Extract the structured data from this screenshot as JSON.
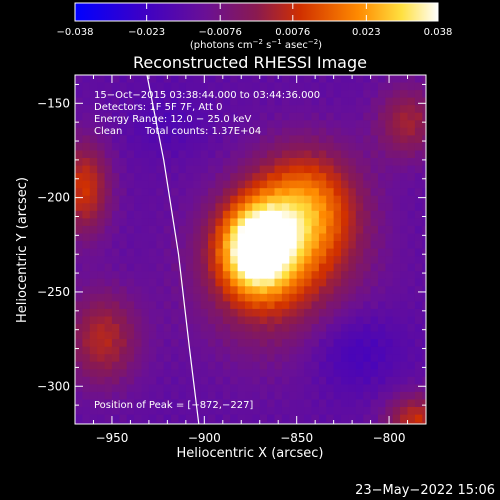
{
  "chart_data": {
    "type": "heatmap",
    "title": "Reconstructed RHESSI Image",
    "xlabel": "Heliocentric X (arcsec)",
    "ylabel": "Heliocentric Y (arcsec)",
    "xlim": [
      -970,
      -780
    ],
    "ylim": [
      -320,
      -135
    ],
    "x_ticks": [
      -950,
      -900,
      -850,
      -800
    ],
    "y_ticks": [
      -150,
      -200,
      -250,
      -300
    ],
    "x_tick_labels": [
      "−950",
      "−900",
      "−850",
      "−800"
    ],
    "y_tick_labels": [
      "−150",
      "−200",
      "−250",
      "−300"
    ],
    "colorbar": {
      "range": [
        -0.038,
        0.038
      ],
      "ticks": [
        -0.038,
        -0.023,
        -0.0076,
        0.0076,
        0.023,
        0.038
      ],
      "tick_labels": [
        "−0.038",
        "−0.023",
        "−0.0076",
        "0.0076",
        "0.023",
        "0.038"
      ],
      "unit_parts": [
        "(photons cm",
        "−2",
        " s",
        "−1",
        " asec",
        "−2",
        ")"
      ],
      "colors": [
        "#0000ff",
        "#5a0090",
        "#8a1a50",
        "#d84000",
        "#ff9000",
        "#ffff80",
        "#ffffff"
      ]
    },
    "annotations": {
      "time_range": "15−Oct−2015 03:38:44.000 to 03:44:36.000",
      "detectors": "Detectors: 1F 5F 7F, Att 0",
      "energy": "Energy Range: 12.0 − 25.0 keV",
      "method": "Clean",
      "counts": "Total counts: 1.37E+04",
      "peak": "Position of Peak = [−872,−227]"
    },
    "peak": {
      "x": -872,
      "y": -227,
      "value": 0.038
    },
    "limb_curve": [
      [
        -931,
        -135
      ],
      [
        -922,
        -180
      ],
      [
        -914,
        -230
      ],
      [
        -908,
        -280
      ],
      [
        -903,
        -320
      ]
    ]
  },
  "footer": {
    "date": "23−May−2022 15:06"
  }
}
